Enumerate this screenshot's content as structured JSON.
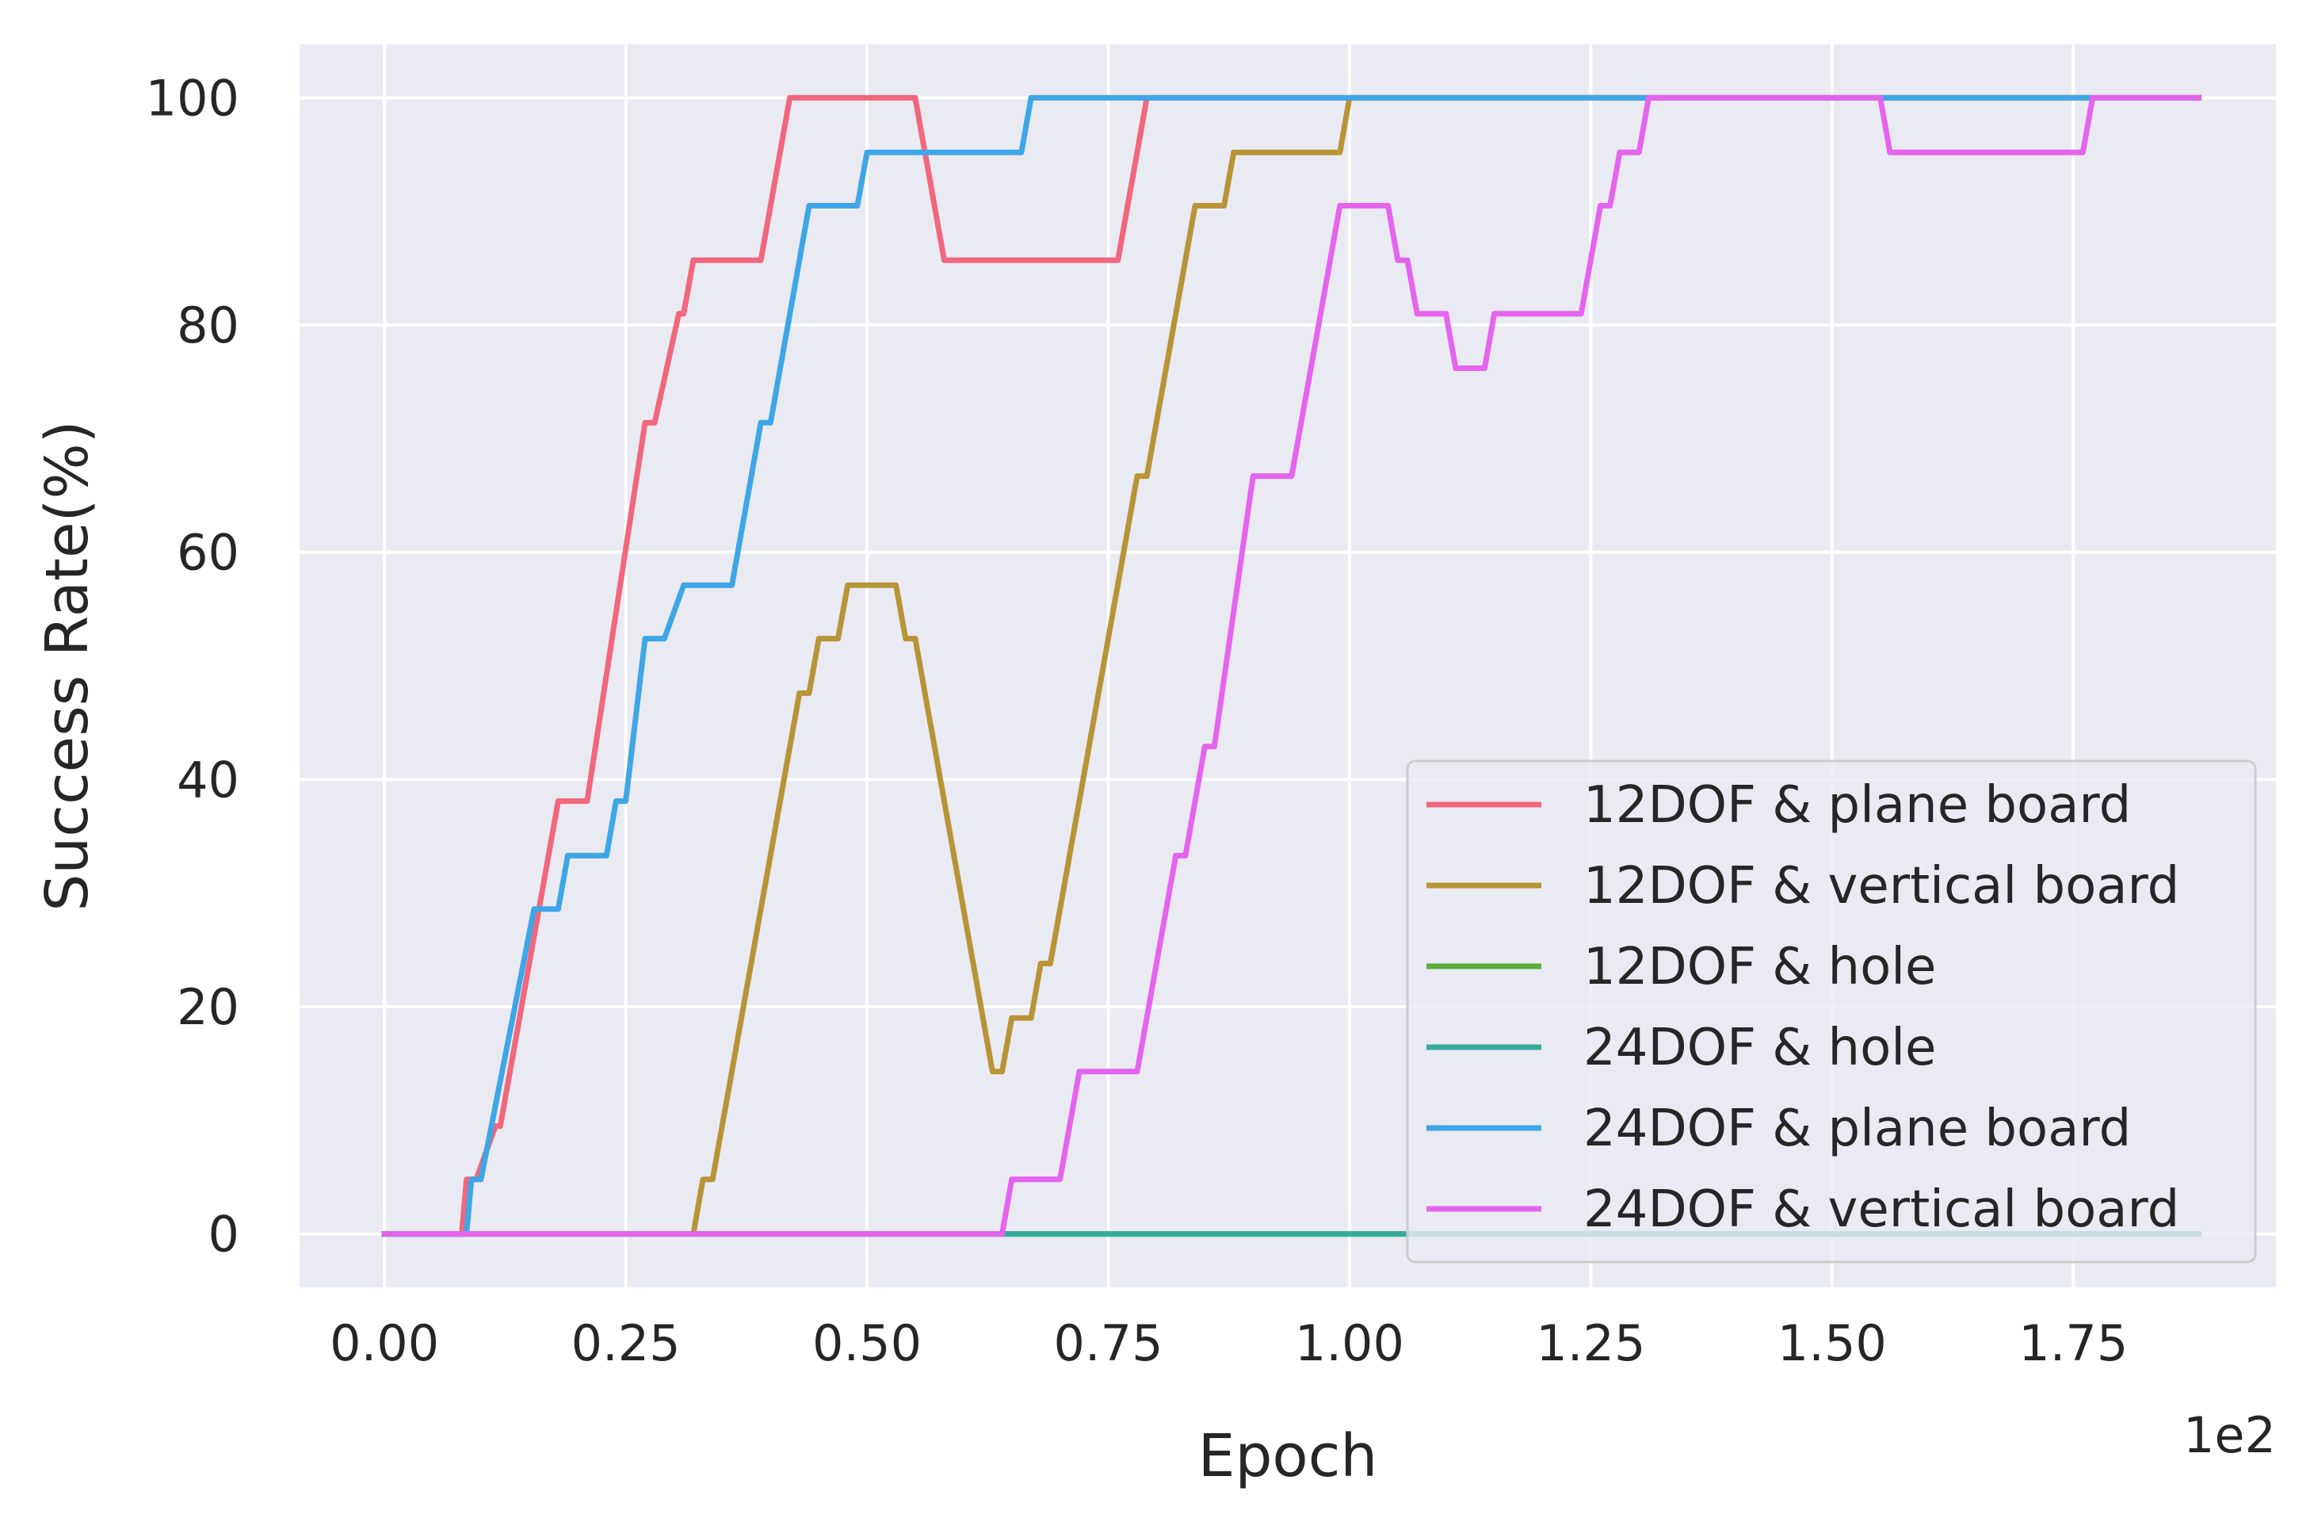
{
  "chart_data": {
    "type": "line",
    "xlabel": "Epoch",
    "ylabel": "Success Rate(%)",
    "x_offset_label": "1e2",
    "xlim": [
      -0.088,
      1.96
    ],
    "ylim": [
      -4.7,
      104.7
    ],
    "xticks": [
      0.0,
      0.25,
      0.5,
      0.75,
      1.0,
      1.25,
      1.5,
      1.75
    ],
    "xtick_labels": [
      "0.00",
      "0.25",
      "0.50",
      "0.75",
      "1.00",
      "1.25",
      "1.50",
      "1.75"
    ],
    "yticks": [
      0,
      20,
      40,
      60,
      80,
      100
    ],
    "ytick_labels": [
      "0",
      "20",
      "40",
      "60",
      "80",
      "100"
    ],
    "grid": true,
    "background": "#eaeaf2",
    "legend_position": "lower-right",
    "series": [
      {
        "name": "12DOF & plane board",
        "color": "#f0677e",
        "points": [
          [
            0,
            0
          ],
          [
            0.08,
            0
          ],
          [
            0.085,
            4.8
          ],
          [
            0.095,
            4.8
          ],
          [
            0.115,
            9.5
          ],
          [
            0.12,
            9.5
          ],
          [
            0.18,
            38.1
          ],
          [
            0.21,
            38.1
          ],
          [
            0.27,
            71.4
          ],
          [
            0.28,
            71.4
          ],
          [
            0.305,
            81
          ],
          [
            0.31,
            81
          ],
          [
            0.32,
            85.7
          ],
          [
            0.39,
            85.7
          ],
          [
            0.42,
            100
          ],
          [
            0.55,
            100
          ],
          [
            0.58,
            85.7
          ],
          [
            0.76,
            85.7
          ],
          [
            0.79,
            100
          ],
          [
            1.88,
            100
          ]
        ]
      },
      {
        "name": "12DOF & vertical board",
        "color": "#b89437",
        "points": [
          [
            0,
            0
          ],
          [
            0.32,
            0
          ],
          [
            0.33,
            4.8
          ],
          [
            0.34,
            4.8
          ],
          [
            0.43,
            47.6
          ],
          [
            0.44,
            47.6
          ],
          [
            0.45,
            52.4
          ],
          [
            0.47,
            52.4
          ],
          [
            0.48,
            57.1
          ],
          [
            0.53,
            57.1
          ],
          [
            0.54,
            52.4
          ],
          [
            0.55,
            52.4
          ],
          [
            0.63,
            14.3
          ],
          [
            0.64,
            14.3
          ],
          [
            0.65,
            19
          ],
          [
            0.67,
            19
          ],
          [
            0.68,
            23.8
          ],
          [
            0.69,
            23.8
          ],
          [
            0.78,
            66.7
          ],
          [
            0.79,
            66.7
          ],
          [
            0.84,
            90.5
          ],
          [
            0.87,
            90.5
          ],
          [
            0.88,
            95.2
          ],
          [
            0.99,
            95.2
          ],
          [
            1.0,
            100
          ],
          [
            1.88,
            100
          ]
        ]
      },
      {
        "name": "12DOF & hole",
        "color": "#59ad3f",
        "points": [
          [
            0,
            0
          ],
          [
            1.88,
            0
          ]
        ]
      },
      {
        "name": "24DOF & hole",
        "color": "#36ab9c",
        "points": [
          [
            0,
            0
          ],
          [
            1.88,
            0
          ]
        ]
      },
      {
        "name": "24DOF & plane board",
        "color": "#3ea6e6",
        "points": [
          [
            0,
            0
          ],
          [
            0.085,
            0
          ],
          [
            0.09,
            4.8
          ],
          [
            0.1,
            4.8
          ],
          [
            0.155,
            28.6
          ],
          [
            0.18,
            28.6
          ],
          [
            0.19,
            33.3
          ],
          [
            0.23,
            33.3
          ],
          [
            0.24,
            38.1
          ],
          [
            0.25,
            38.1
          ],
          [
            0.27,
            52.4
          ],
          [
            0.29,
            52.4
          ],
          [
            0.31,
            57.1
          ],
          [
            0.36,
            57.1
          ],
          [
            0.39,
            71.4
          ],
          [
            0.4,
            71.4
          ],
          [
            0.44,
            90.5
          ],
          [
            0.49,
            90.5
          ],
          [
            0.5,
            95.2
          ],
          [
            0.66,
            95.2
          ],
          [
            0.67,
            100
          ],
          [
            1.88,
            100
          ]
        ]
      },
      {
        "name": "24DOF & vertical board",
        "color": "#e464ee",
        "points": [
          [
            0,
            0
          ],
          [
            0.64,
            0
          ],
          [
            0.65,
            4.8
          ],
          [
            0.7,
            4.8
          ],
          [
            0.72,
            14.3
          ],
          [
            0.78,
            14.3
          ],
          [
            0.82,
            33.3
          ],
          [
            0.83,
            33.3
          ],
          [
            0.85,
            42.9
          ],
          [
            0.86,
            42.9
          ],
          [
            0.9,
            66.7
          ],
          [
            0.94,
            66.7
          ],
          [
            0.99,
            90.5
          ],
          [
            1.04,
            90.5
          ],
          [
            1.05,
            85.7
          ],
          [
            1.06,
            85.7
          ],
          [
            1.07,
            81
          ],
          [
            1.1,
            81
          ],
          [
            1.11,
            76.2
          ],
          [
            1.14,
            76.2
          ],
          [
            1.15,
            81
          ],
          [
            1.24,
            81
          ],
          [
            1.26,
            90.5
          ],
          [
            1.27,
            90.5
          ],
          [
            1.28,
            95.2
          ],
          [
            1.3,
            95.2
          ],
          [
            1.31,
            100
          ],
          [
            1.55,
            100
          ],
          [
            1.56,
            95.2
          ],
          [
            1.76,
            95.2
          ],
          [
            1.77,
            100
          ],
          [
            1.88,
            100
          ]
        ]
      }
    ]
  }
}
